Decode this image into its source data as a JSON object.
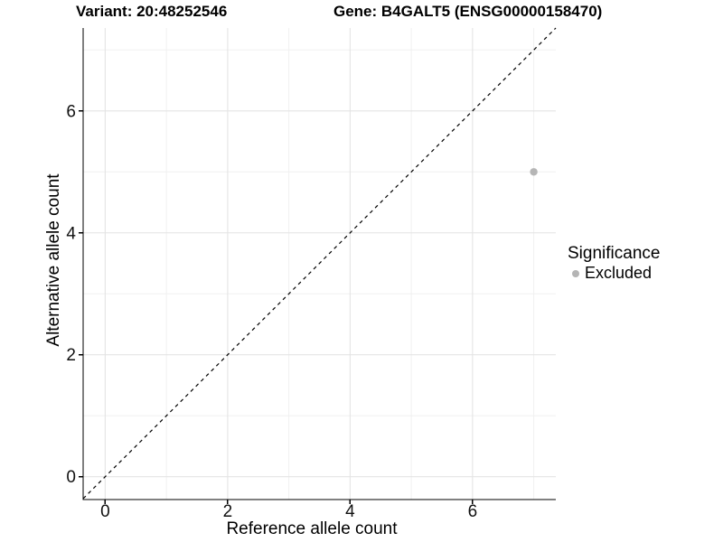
{
  "header": {
    "title_left": "Variant: 20:48252546",
    "title_right": "Gene: B4GALT5 (ENSG00000158470)"
  },
  "chart_data": {
    "type": "scatter",
    "xlabel": "Reference allele count",
    "ylabel": "Alternative allele count",
    "xlim": [
      -0.36,
      7.36
    ],
    "ylim": [
      -0.375,
      7.36
    ],
    "x_ticks": [
      0,
      2,
      4,
      6
    ],
    "y_ticks": [
      0,
      2,
      4,
      6
    ],
    "x_minor_ticks": [
      1,
      3,
      5,
      7
    ],
    "y_minor_ticks": [
      1,
      3,
      5,
      7
    ],
    "grid": true,
    "reference_line": {
      "type": "identity y=x",
      "style": "dashed",
      "color": "#000000"
    },
    "series": [
      {
        "name": "Excluded",
        "color": "#b5b5b5",
        "points": [
          {
            "x": 7,
            "y": 5
          }
        ]
      }
    ],
    "legend": {
      "title": "Significance",
      "position": "right",
      "items": [
        {
          "label": "Excluded",
          "color": "#b5b5b5"
        }
      ]
    },
    "colors": {
      "background": "#ffffff",
      "major_grid": "#e4e4e4",
      "minor_grid": "#f0f0f0",
      "axis_line": "#000000",
      "tick_text": "#111111"
    }
  }
}
